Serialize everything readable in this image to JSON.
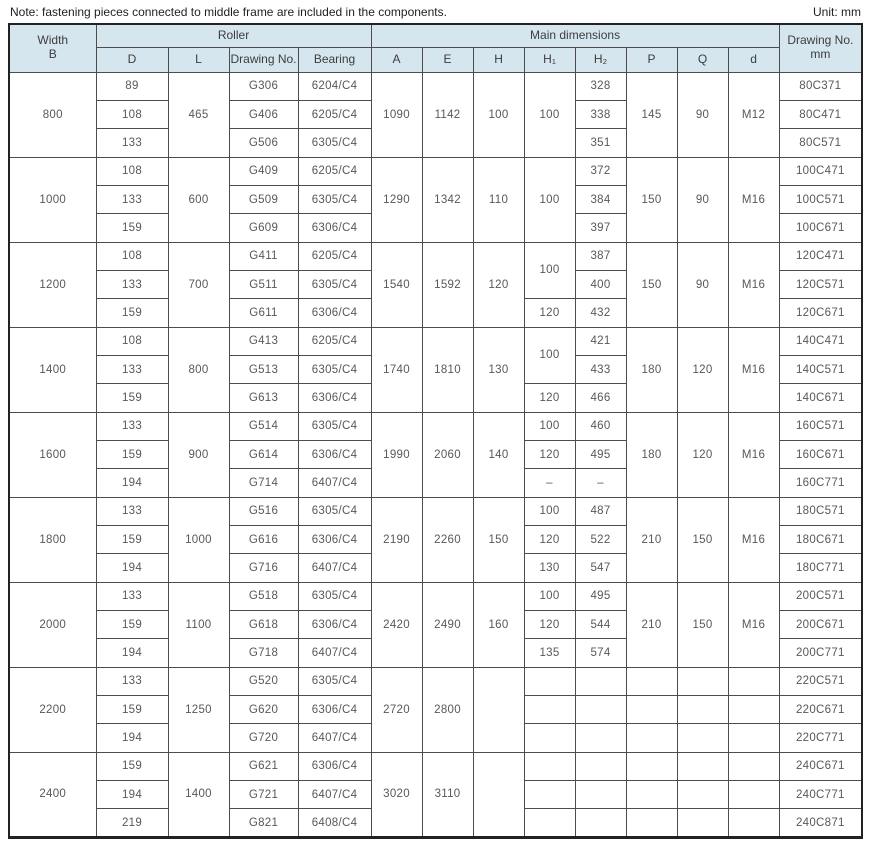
{
  "note": "Note: fastening pieces connected to middle frame are included in the components.",
  "unit": "Unit: mm",
  "colors": {
    "header_bg": "#d5e6ee",
    "border": "#4c4c4c",
    "outer_border": "#222222",
    "cell_text": "#585858",
    "header_text": "#3d3d3d",
    "note_text": "#1f1f1f"
  },
  "header": {
    "width_line1": "Width",
    "width_line2": "B",
    "roller": "Roller",
    "main_dimensions": "Main dimensions",
    "drawing_no_line1": "Drawing No.",
    "drawing_no_line2": "mm",
    "sub": [
      "D",
      "L",
      "Drawing No.",
      "Bearing",
      "A",
      "E",
      "H",
      "H₁",
      "H₂",
      "P",
      "Q",
      "d"
    ]
  },
  "groups": [
    {
      "cols": {
        "B": [
          {
            "t": "800",
            "rs": 3
          }
        ],
        "D": [
          "89",
          "108",
          "133"
        ],
        "L": [
          {
            "t": "465",
            "rs": 3
          }
        ],
        "DRW": [
          "G306",
          "G406",
          "G506"
        ],
        "BRG": [
          "6204/C4",
          "6205/C4",
          "6305/C4"
        ],
        "A": [
          {
            "t": "1090",
            "rs": 3
          }
        ],
        "E": [
          {
            "t": "1142",
            "rs": 3
          }
        ],
        "H": [
          {
            "t": "100",
            "rs": 3
          }
        ],
        "H1": [
          {
            "t": "100",
            "rs": 3
          }
        ],
        "H2": [
          "328",
          "338",
          "351"
        ],
        "P": [
          {
            "t": "145",
            "rs": 3
          }
        ],
        "Q": [
          {
            "t": "90",
            "rs": 3
          }
        ],
        "d": [
          {
            "t": "M12",
            "rs": 3
          }
        ],
        "DNO": [
          "80C371",
          "80C471",
          "80C571"
        ]
      }
    },
    {
      "cols": {
        "B": [
          {
            "t": "1000",
            "rs": 3
          }
        ],
        "D": [
          "108",
          "133",
          "159"
        ],
        "L": [
          {
            "t": "600",
            "rs": 3
          }
        ],
        "DRW": [
          "G409",
          "G509",
          "G609"
        ],
        "BRG": [
          "6205/C4",
          "6305/C4",
          "6306/C4"
        ],
        "A": [
          {
            "t": "1290",
            "rs": 3
          }
        ],
        "E": [
          {
            "t": "1342",
            "rs": 3
          }
        ],
        "H": [
          {
            "t": "110",
            "rs": 3
          }
        ],
        "H1": [
          {
            "t": "100",
            "rs": 3
          }
        ],
        "H2": [
          "372",
          "384",
          "397"
        ],
        "P": [
          {
            "t": "150",
            "rs": 3
          }
        ],
        "Q": [
          {
            "t": "90",
            "rs": 3
          }
        ],
        "d": [
          {
            "t": "M16",
            "rs": 3
          }
        ],
        "DNO": [
          "100C471",
          "100C571",
          "100C671"
        ]
      }
    },
    {
      "cols": {
        "B": [
          {
            "t": "1200",
            "rs": 3
          }
        ],
        "D": [
          "108",
          "133",
          "159"
        ],
        "L": [
          {
            "t": "700",
            "rs": 3
          }
        ],
        "DRW": [
          "G411",
          "G511",
          "G611"
        ],
        "BRG": [
          "6205/C4",
          "6305/C4",
          "6306/C4"
        ],
        "A": [
          {
            "t": "1540",
            "rs": 3
          }
        ],
        "E": [
          {
            "t": "1592",
            "rs": 3
          }
        ],
        "H": [
          {
            "t": "120",
            "rs": 3
          }
        ],
        "H1": [
          {
            "t": "100",
            "rs": 2
          },
          "120"
        ],
        "H2": [
          "387",
          "400",
          "432"
        ],
        "P": [
          {
            "t": "150",
            "rs": 3
          }
        ],
        "Q": [
          {
            "t": "90",
            "rs": 3
          }
        ],
        "d": [
          {
            "t": "M16",
            "rs": 3
          }
        ],
        "DNO": [
          "120C471",
          "120C571",
          "120C671"
        ]
      }
    },
    {
      "cols": {
        "B": [
          {
            "t": "1400",
            "rs": 3
          }
        ],
        "D": [
          "108",
          "133",
          "159"
        ],
        "L": [
          {
            "t": "800",
            "rs": 3
          }
        ],
        "DRW": [
          "G413",
          "G513",
          "G613"
        ],
        "BRG": [
          "6205/C4",
          "6305/C4",
          "6306/C4"
        ],
        "A": [
          {
            "t": "1740",
            "rs": 3
          }
        ],
        "E": [
          {
            "t": "1810",
            "rs": 3
          }
        ],
        "H": [
          {
            "t": "130",
            "rs": 3
          }
        ],
        "H1": [
          {
            "t": "100",
            "rs": 2
          },
          "120"
        ],
        "H2": [
          "421",
          "433",
          "466"
        ],
        "P": [
          {
            "t": "180",
            "rs": 3
          }
        ],
        "Q": [
          {
            "t": "120",
            "rs": 3
          }
        ],
        "d": [
          {
            "t": "M16",
            "rs": 3
          }
        ],
        "DNO": [
          "140C471",
          "140C571",
          "140C671"
        ]
      }
    },
    {
      "cols": {
        "B": [
          {
            "t": "1600",
            "rs": 3
          }
        ],
        "D": [
          "133",
          "159",
          "194"
        ],
        "L": [
          {
            "t": "900",
            "rs": 3
          }
        ],
        "DRW": [
          "G514",
          "G614",
          "G714"
        ],
        "BRG": [
          "6305/C4",
          "6306/C4",
          "6407/C4"
        ],
        "A": [
          {
            "t": "1990",
            "rs": 3
          }
        ],
        "E": [
          {
            "t": "2060",
            "rs": 3
          }
        ],
        "H": [
          {
            "t": "140",
            "rs": 3
          }
        ],
        "H1": [
          "100",
          "120",
          "–"
        ],
        "H2": [
          "460",
          "495",
          "–"
        ],
        "P": [
          {
            "t": "180",
            "rs": 3
          }
        ],
        "Q": [
          {
            "t": "120",
            "rs": 3
          }
        ],
        "d": [
          {
            "t": "M16",
            "rs": 3
          }
        ],
        "DNO": [
          "160C571",
          "160C671",
          "160C771"
        ]
      }
    },
    {
      "cols": {
        "B": [
          {
            "t": "1800",
            "rs": 3
          }
        ],
        "D": [
          "133",
          "159",
          "194"
        ],
        "L": [
          {
            "t": "1000",
            "rs": 3
          }
        ],
        "DRW": [
          "G516",
          "G616",
          "G716"
        ],
        "BRG": [
          "6305/C4",
          "6306/C4",
          "6407/C4"
        ],
        "A": [
          {
            "t": "2190",
            "rs": 3
          }
        ],
        "E": [
          {
            "t": "2260",
            "rs": 3
          }
        ],
        "H": [
          {
            "t": "150",
            "rs": 3
          }
        ],
        "H1": [
          "100",
          "120",
          "130"
        ],
        "H2": [
          "487",
          "522",
          "547"
        ],
        "P": [
          {
            "t": "210",
            "rs": 3
          }
        ],
        "Q": [
          {
            "t": "150",
            "rs": 3
          }
        ],
        "d": [
          {
            "t": "M16",
            "rs": 3
          }
        ],
        "DNO": [
          "180C571",
          "180C671",
          "180C771"
        ]
      }
    },
    {
      "cols": {
        "B": [
          {
            "t": "2000",
            "rs": 3
          }
        ],
        "D": [
          "133",
          "159",
          "194"
        ],
        "L": [
          {
            "t": "1100",
            "rs": 3
          }
        ],
        "DRW": [
          "G518",
          "G618",
          "G718"
        ],
        "BRG": [
          "6305/C4",
          "6306/C4",
          "6407/C4"
        ],
        "A": [
          {
            "t": "2420",
            "rs": 3
          }
        ],
        "E": [
          {
            "t": "2490",
            "rs": 3
          }
        ],
        "H": [
          {
            "t": "160",
            "rs": 3
          }
        ],
        "H1": [
          "100",
          "120",
          "135"
        ],
        "H2": [
          "495",
          "544",
          "574"
        ],
        "P": [
          {
            "t": "210",
            "rs": 3
          }
        ],
        "Q": [
          {
            "t": "150",
            "rs": 3
          }
        ],
        "d": [
          {
            "t": "M16",
            "rs": 3
          }
        ],
        "DNO": [
          "200C571",
          "200C671",
          "200C771"
        ]
      }
    },
    {
      "cols": {
        "B": [
          {
            "t": "2200",
            "rs": 3
          }
        ],
        "D": [
          "133",
          "159",
          "194"
        ],
        "L": [
          {
            "t": "1250",
            "rs": 3
          }
        ],
        "DRW": [
          "G520",
          "G620",
          "G720"
        ],
        "BRG": [
          "6305/C4",
          "6306/C4",
          "6407/C4"
        ],
        "A": [
          {
            "t": "2720",
            "rs": 3
          }
        ],
        "E": [
          {
            "t": "2800",
            "rs": 3
          }
        ],
        "H": [
          {
            "t": "",
            "rs": 3
          }
        ],
        "H1": [
          "",
          "",
          ""
        ],
        "H2": [
          "",
          "",
          ""
        ],
        "P": [
          "",
          "",
          ""
        ],
        "Q": [
          "",
          "",
          ""
        ],
        "d": [
          "",
          "",
          ""
        ],
        "DNO": [
          "220C571",
          "220C671",
          "220C771"
        ]
      }
    },
    {
      "cols": {
        "B": [
          {
            "t": "2400",
            "rs": 3
          }
        ],
        "D": [
          "159",
          "194",
          "219"
        ],
        "L": [
          {
            "t": "1400",
            "rs": 3
          }
        ],
        "DRW": [
          "G621",
          "G721",
          "G821"
        ],
        "BRG": [
          "6306/C4",
          "6407/C4",
          "6408/C4"
        ],
        "A": [
          {
            "t": "3020",
            "rs": 3
          }
        ],
        "E": [
          {
            "t": "3110",
            "rs": 3
          }
        ],
        "H": [
          {
            "t": "",
            "rs": 3
          }
        ],
        "H1": [
          "",
          "",
          ""
        ],
        "H2": [
          "",
          "",
          ""
        ],
        "P": [
          "",
          "",
          ""
        ],
        "Q": [
          "",
          "",
          ""
        ],
        "d": [
          "",
          "",
          ""
        ],
        "DNO": [
          "240C671",
          "240C771",
          "240C871"
        ]
      }
    }
  ]
}
